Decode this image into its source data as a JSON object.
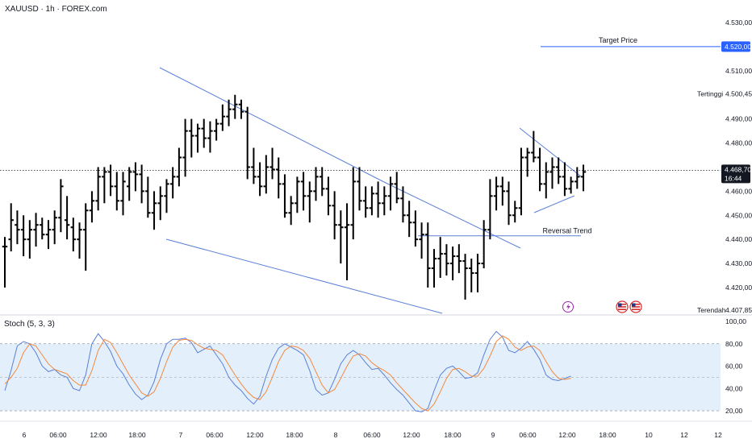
{
  "header": {
    "symbol_title": "XAUUSD · 1h · FOREX.com"
  },
  "colors": {
    "candle": "#000000",
    "trendline": "#5b7fd6",
    "price_tag_bg": "#131722",
    "target_tag_bg": "#2962ff",
    "stoch_k": "#5b7fd6",
    "stoch_d": "#f4893d",
    "stoch_band": "#e3f0fc",
    "event_flash": "#9c27b0"
  },
  "price_axis": {
    "ticks": [
      "4.530,00",
      "4.510,00",
      "4.490,00",
      "4.480,00",
      "4.460,00",
      "4.450,00",
      "4.440,00",
      "4.430,00",
      "4.420,00"
    ],
    "tick_values": [
      4530,
      4510,
      4490,
      4480,
      4460,
      4450,
      4440,
      4430,
      4420
    ],
    "high_label": "Tertinggi",
    "high_value": "4.500,45",
    "low_label": "Terendah",
    "low_value": "4.407,85",
    "target_value_text": "4.520,00",
    "current_price_text": "4.468,70",
    "countdown_text": "16:44"
  },
  "time_axis": {
    "labels": [
      "6",
      "06:00",
      "12:00",
      "18:00",
      "7",
      "06:00",
      "12:00",
      "18:00",
      "8",
      "06:00",
      "12:00",
      "18:00",
      "9",
      "06:00",
      "12:00",
      "18:00",
      "10",
      "12",
      "12"
    ]
  },
  "annotations": {
    "target_label": "Target Price",
    "reversal_label": "Reversal Trend"
  },
  "stoch": {
    "title": "Stoch (5, 3, 3)",
    "ticks": [
      "100,00",
      "80,00",
      "60,00",
      "40,00",
      "20,00"
    ],
    "tick_values": [
      100,
      80,
      60,
      40,
      20
    ]
  },
  "chart_data": {
    "type": "ohlc",
    "symbol": "XAUUSD",
    "timeframe": "1h",
    "ylim": [
      4404,
      4536
    ],
    "target_price": 4520.0,
    "reversal_level": 4441.5,
    "high_price": 4500.45,
    "low_price": 4407.85,
    "last_price": 4468.7,
    "bars": [
      [
        4437,
        4441,
        4420,
        4437
      ],
      [
        4440,
        4455,
        4435,
        4448
      ],
      [
        4446,
        4452,
        4438,
        4444
      ],
      [
        4444,
        4450,
        4433,
        4440
      ],
      [
        4440,
        4448,
        4432,
        4444
      ],
      [
        4444,
        4451,
        4437,
        4446
      ],
      [
        4446,
        4449,
        4440,
        4442
      ],
      [
        4442,
        4448,
        4436,
        4444
      ],
      [
        4444,
        4452,
        4438,
        4449
      ],
      [
        4449,
        4465,
        4443,
        4462
      ],
      [
        4448,
        4458,
        4440,
        4446
      ],
      [
        4445,
        4449,
        4435,
        4440
      ],
      [
        4440,
        4447,
        4432,
        4444
      ],
      [
        4444,
        4455,
        4427,
        4452
      ],
      [
        4452,
        4460,
        4447,
        4456
      ],
      [
        4456,
        4470,
        4452,
        4466
      ],
      [
        4466,
        4470,
        4455,
        4468
      ],
      [
        4468,
        4471,
        4458,
        4462
      ],
      [
        4462,
        4468,
        4452,
        4456
      ],
      [
        4456,
        4468,
        4450,
        4464
      ],
      [
        4462,
        4470,
        4456,
        4468
      ],
      [
        4468,
        4472,
        4460,
        4467
      ],
      [
        4467,
        4471,
        4455,
        4460
      ],
      [
        4460,
        4466,
        4449,
        4451
      ],
      [
        4451,
        4460,
        4444,
        4455
      ],
      [
        4455,
        4462,
        4448,
        4458
      ],
      [
        4458,
        4465,
        4451,
        4463
      ],
      [
        4463,
        4470,
        4457,
        4466
      ],
      [
        4466,
        4478,
        4462,
        4474
      ],
      [
        4474,
        4490,
        4466,
        4485
      ],
      [
        4485,
        4490,
        4474,
        4483
      ],
      [
        4483,
        4488,
        4476,
        4486
      ],
      [
        4486,
        4490,
        4478,
        4482
      ],
      [
        4482,
        4489,
        4476,
        4485
      ],
      [
        4485,
        4490,
        4481,
        4488
      ],
      [
        4488,
        4496,
        4485,
        4491
      ],
      [
        4491,
        4498,
        4487,
        4494
      ],
      [
        4494,
        4500,
        4490,
        4496
      ],
      [
        4496,
        4498,
        4490,
        4493
      ],
      [
        4493,
        4495,
        4465,
        4470
      ],
      [
        4470,
        4478,
        4463,
        4466
      ],
      [
        4466,
        4472,
        4458,
        4462
      ],
      [
        4462,
        4475,
        4459,
        4470
      ],
      [
        4470,
        4478,
        4465,
        4469
      ],
      [
        4469,
        4474,
        4457,
        4463
      ],
      [
        4463,
        4467,
        4449,
        4451
      ],
      [
        4451,
        4458,
        4446,
        4455
      ],
      [
        4455,
        4466,
        4451,
        4464
      ],
      [
        4464,
        4468,
        4452,
        4458
      ],
      [
        4458,
        4464,
        4447,
        4460
      ],
      [
        4460,
        4470,
        4456,
        4466
      ],
      [
        4466,
        4470,
        4458,
        4461
      ],
      [
        4461,
        4466,
        4450,
        4454
      ],
      [
        4454,
        4460,
        4440,
        4446
      ],
      [
        4446,
        4452,
        4430,
        4445
      ],
      [
        4445,
        4455,
        4423,
        4446
      ],
      [
        4446,
        4470,
        4440,
        4464
      ],
      [
        4464,
        4470,
        4452,
        4456
      ],
      [
        4456,
        4462,
        4449,
        4453
      ],
      [
        4453,
        4462,
        4450,
        4459
      ],
      [
        4459,
        4464,
        4449,
        4455
      ],
      [
        4455,
        4462,
        4450,
        4458
      ],
      [
        4458,
        4466,
        4452,
        4463
      ],
      [
        4463,
        4468,
        4455,
        4457
      ],
      [
        4457,
        4462,
        4447,
        4450
      ],
      [
        4450,
        4456,
        4441,
        4447
      ],
      [
        4447,
        4452,
        4437,
        4440
      ],
      [
        4440,
        4447,
        4432,
        4442
      ],
      [
        4442,
        4447,
        4420,
        4428
      ],
      [
        4428,
        4436,
        4420,
        4432
      ],
      [
        4432,
        4441,
        4424,
        4434
      ],
      [
        4434,
        4438,
        4425,
        4430
      ],
      [
        4430,
        4437,
        4423,
        4433
      ],
      [
        4433,
        4438,
        4426,
        4431
      ],
      [
        4431,
        4434,
        4415,
        4428
      ],
      [
        4428,
        4432,
        4418,
        4426
      ],
      [
        4426,
        4434,
        4418,
        4430
      ],
      [
        4430,
        4448,
        4428,
        4444
      ],
      [
        4444,
        4465,
        4440,
        4458
      ],
      [
        4458,
        4466,
        4452,
        4462
      ],
      [
        4462,
        4466,
        4454,
        4460
      ],
      [
        4460,
        4464,
        4446,
        4450
      ],
      [
        4450,
        4456,
        4447,
        4453
      ],
      [
        4453,
        4478,
        4450,
        4474
      ],
      [
        4474,
        4478,
        4466,
        4476
      ],
      [
        4476,
        4485,
        4472,
        4474
      ],
      [
        4474,
        4478,
        4460,
        4463
      ],
      [
        4463,
        4472,
        4457,
        4468
      ],
      [
        4468,
        4474,
        4461,
        4470
      ],
      [
        4470,
        4474,
        4463,
        4466
      ],
      [
        4466,
        4472,
        4458,
        4461
      ],
      [
        4461,
        4466,
        4459,
        4464
      ],
      [
        4464,
        4470,
        4461,
        4466
      ],
      [
        4466,
        4471,
        4460,
        4468
      ]
    ],
    "stoch_k": [
      38,
      56,
      78,
      82,
      80,
      72,
      60,
      55,
      57,
      52,
      50,
      40,
      38,
      52,
      80,
      89,
      82,
      73,
      60,
      53,
      43,
      35,
      30,
      34,
      46,
      66,
      80,
      84,
      84,
      85,
      81,
      72,
      75,
      78,
      70,
      62,
      50,
      43,
      38,
      31,
      26,
      33,
      51,
      66,
      76,
      80,
      77,
      74,
      70,
      56,
      39,
      34,
      36,
      48,
      62,
      70,
      74,
      70,
      63,
      57,
      58,
      52,
      45,
      39,
      34,
      27,
      20,
      19,
      22,
      38,
      52,
      58,
      60,
      55,
      49,
      50,
      54,
      70,
      84,
      91,
      86,
      74,
      72,
      76,
      82,
      75,
      66,
      52,
      48,
      47,
      49,
      51
    ],
    "stoch_d": [
      44,
      50,
      58,
      72,
      80,
      78,
      70,
      62,
      57,
      55,
      53,
      47,
      43,
      43,
      56,
      74,
      84,
      81,
      72,
      62,
      52,
      44,
      36,
      33,
      37,
      49,
      64,
      77,
      83,
      84,
      83,
      79,
      76,
      75,
      74,
      70,
      61,
      52,
      44,
      37,
      32,
      30,
      37,
      50,
      64,
      74,
      78,
      77,
      74,
      67,
      55,
      43,
      36,
      39,
      49,
      60,
      69,
      71,
      69,
      63,
      59,
      56,
      52,
      45,
      39,
      33,
      27,
      22,
      20,
      26,
      37,
      49,
      57,
      58,
      55,
      51,
      51,
      58,
      69,
      82,
      87,
      84,
      77,
      74,
      77,
      78,
      74,
      64,
      55,
      49,
      48,
      49
    ]
  }
}
